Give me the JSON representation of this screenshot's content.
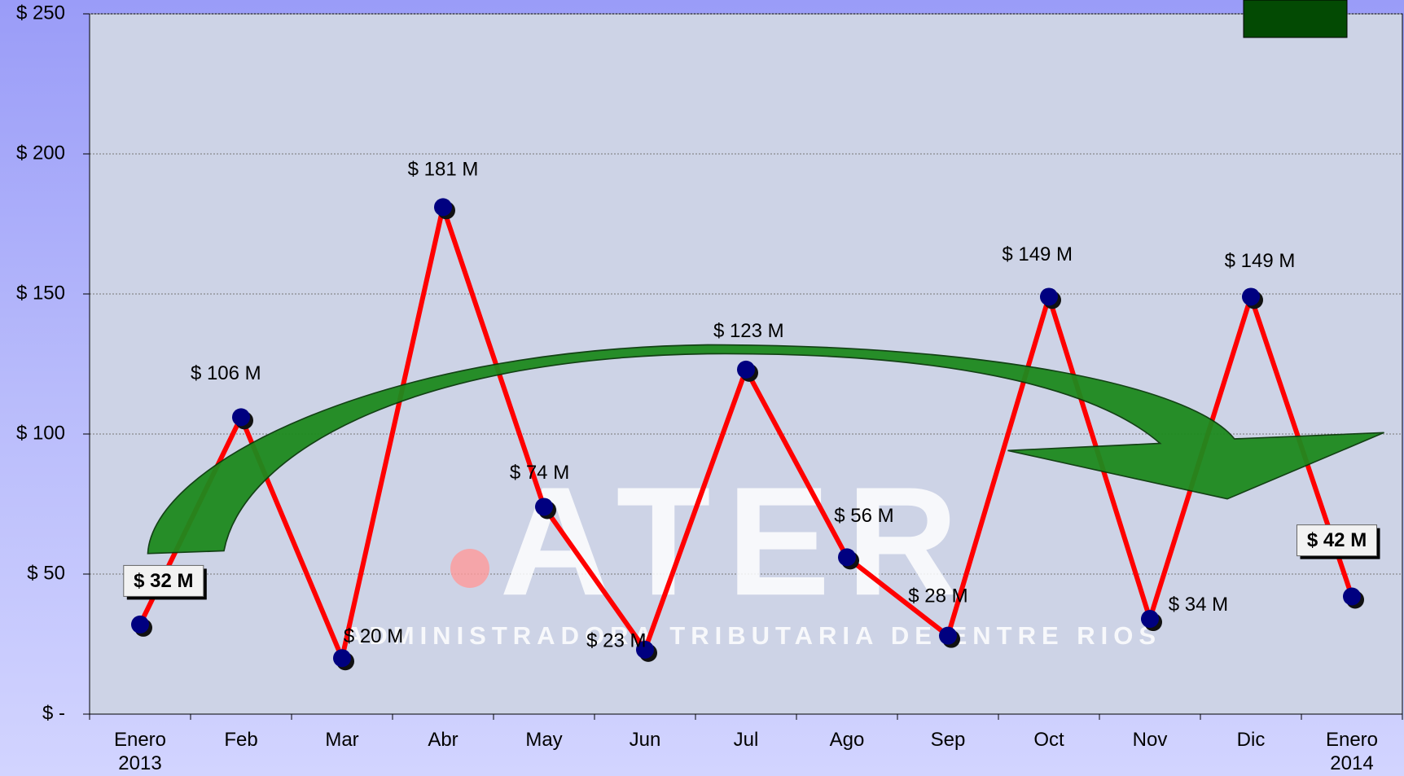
{
  "chart_data": {
    "type": "line",
    "categories": [
      "Enero 2013",
      "Feb",
      "Mar",
      "Abr",
      "May",
      "Jun",
      "Jul",
      "Ago",
      "Sep",
      "Oct",
      "Nov",
      "Dic",
      "Enero 2014"
    ],
    "series": [
      {
        "color": "#ff0000",
        "marker_color": "#000080",
        "values": [
          32,
          106,
          20,
          181,
          74,
          23,
          123,
          56,
          28,
          149,
          34,
          149,
          42
        ],
        "value_labels": [
          "$ 32 M",
          "$ 106 M",
          "$ 20 M",
          "$ 181 M",
          "$ 74 M",
          "$ 23 M",
          "$ 123 M",
          "$ 56 M",
          "$ 28 M",
          "$ 149 M",
          "$ 34 M",
          "$ 149 M",
          "$ 42 M"
        ]
      }
    ],
    "ylim": [
      0,
      250
    ],
    "yticks": [
      {
        "value": 0,
        "label": "$ -"
      },
      {
        "value": 50,
        "label": "$ 50"
      },
      {
        "value": 100,
        "label": "$ 100"
      },
      {
        "value": 150,
        "label": "$ 150"
      },
      {
        "value": 200,
        "label": "$ 200"
      },
      {
        "value": 250,
        "label": "$ 250"
      }
    ],
    "grid": true,
    "watermark": {
      "logo": "ATER",
      "text": "ADMINISTRADORA TRIBUTARIA DE ENTRE RIOS"
    }
  }
}
